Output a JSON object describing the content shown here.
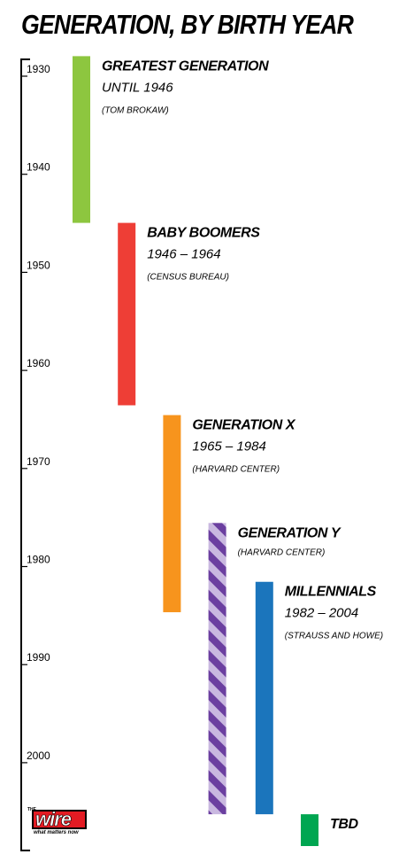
{
  "chart_data": {
    "type": "timeline",
    "title": "GENERATION, BY BIRTH YEAR",
    "axis": {
      "ticks": [
        1930,
        1940,
        1950,
        1960,
        1970,
        1980,
        1990,
        2000
      ],
      "range": [
        1929,
        2008
      ],
      "orientation": "vertical"
    },
    "series": [
      {
        "name": "GREATEST GENERATION",
        "range_text": "UNTIL 1946",
        "source": "(TOM BROKAW)",
        "start": 1928.5,
        "end": 1945.5,
        "color": "#8dc63f",
        "pattern": "solid"
      },
      {
        "name": "BABY BOOMERS",
        "range_text": "1946 – 1964",
        "source": "(CENSUS BUREAU)",
        "start": 1945.5,
        "end": 1964.1,
        "color": "#ee3e36",
        "pattern": "solid"
      },
      {
        "name": "GENERATION X",
        "range_text": "1965 – 1984",
        "source": "(HARVARD CENTER)",
        "start": 1965.1,
        "end": 1985.2,
        "color": "#f7941d",
        "pattern": "solid"
      },
      {
        "name": "GENERATION Y",
        "range_text": "",
        "source": "(HARVARD CENTER)",
        "start": 1976.1,
        "end": 2005.8,
        "color": "#6b3fa0",
        "stripe_color": "#c9b8e0",
        "pattern": "striped"
      },
      {
        "name": "MILLENNIALS",
        "range_text": "1982 – 2004",
        "source": "(STRAUSS AND HOWE)",
        "start": 1982.1,
        "end": 2005.8,
        "color": "#1b75bc",
        "pattern": "solid"
      },
      {
        "name": "TBD",
        "range_text": "",
        "source": "",
        "start": 2005.8,
        "end": 2011.7,
        "color": "#00a651",
        "pattern": "solid"
      }
    ]
  },
  "logo": {
    "the": "THE",
    "word": "wire",
    "tagline": "what matters now"
  }
}
